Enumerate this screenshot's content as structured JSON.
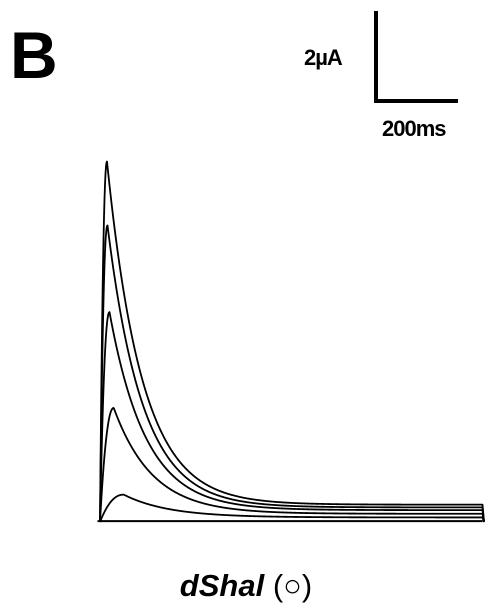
{
  "panel": {
    "letter": "B"
  },
  "scale_bar": {
    "current_label": "2µA",
    "time_label": "200ms",
    "current_value_uA": 2,
    "time_value_ms": 200
  },
  "caption": {
    "gene": "dShal",
    "marker": "(○)"
  },
  "colors": {
    "trace": "#000000",
    "background": "#ffffff"
  },
  "chart_data": {
    "type": "line",
    "title": "",
    "xlabel": "",
    "ylabel": "",
    "x_unit": "ms",
    "y_unit": "µA",
    "xlim": [
      0,
      1600
    ],
    "ylim": [
      -0.1,
      8.5
    ],
    "grid": false,
    "series": [
      {
        "peak_time_ms": 28,
        "peak_uA": 7.9,
        "tau_ms": 140,
        "steady_uA": 0.38
      },
      {
        "peak_time_ms": 30,
        "peak_uA": 6.5,
        "tau_ms": 140,
        "steady_uA": 0.32
      },
      {
        "peak_time_ms": 38,
        "peak_uA": 4.6,
        "tau_ms": 145,
        "steady_uA": 0.26
      },
      {
        "peak_time_ms": 55,
        "peak_uA": 2.5,
        "tau_ms": 155,
        "steady_uA": 0.18
      },
      {
        "peak_time_ms": 95,
        "peak_uA": 0.6,
        "tau_ms": 180,
        "steady_uA": 0.1
      }
    ]
  }
}
